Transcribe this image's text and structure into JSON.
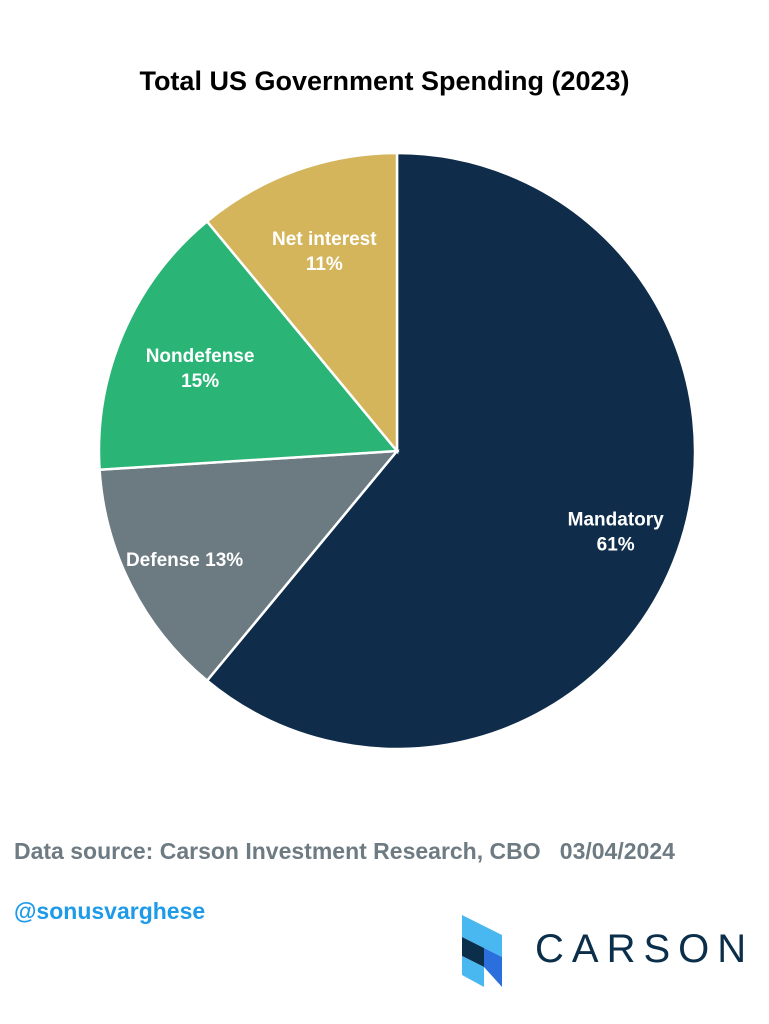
{
  "chart_data": {
    "type": "pie",
    "title": "Total US Government Spending (2023)",
    "slices": [
      {
        "label": "Mandatory",
        "value": 61,
        "value_label": "61%",
        "color": "#0f2d4a"
      },
      {
        "label": "Defense",
        "value": 13,
        "value_label": "13%",
        "color": "#6c7a81"
      },
      {
        "label": "Nondefense",
        "value": 15,
        "value_label": "15%",
        "color": "#2ab475"
      },
      {
        "label": "Net interest",
        "value": 11,
        "value_label": "11%",
        "color": "#d4b55c"
      }
    ],
    "start": "12 o'clock",
    "direction": "clockwise"
  },
  "footer": {
    "source": "Data source: Carson Investment Research, CBO   03/04/2024",
    "handle": "@sonusvarghese",
    "handle_color": "#1e9be8",
    "source_color": "#6e7b83"
  },
  "logo": {
    "wordmark": "CARSON",
    "icon": "carson-chevron-logo-icon",
    "colors": [
      "#0b2f4a",
      "#2a6fdb",
      "#49b8f0"
    ]
  }
}
